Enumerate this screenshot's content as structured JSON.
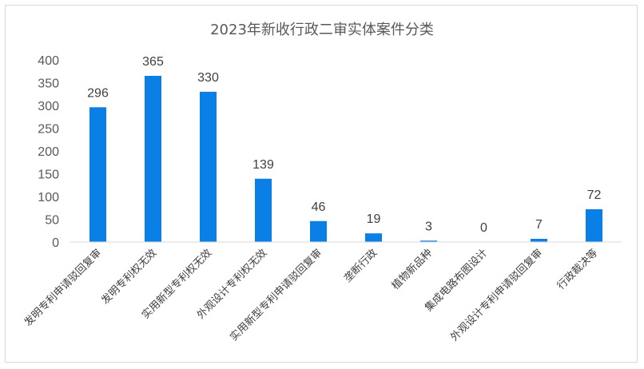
{
  "chart_data": {
    "type": "bar",
    "title": "2023年新收行政二审实体案件分类",
    "categories": [
      "发明专利申请驳回复审",
      "发明专利权无效",
      "实用新型专利权无效",
      "外观设计专利权无效",
      "实用新型专利申请驳回复审",
      "垄断行政",
      "植物新品种",
      "集成电路布图设计",
      "外观设计专利申请驳回复审",
      "行政裁决等"
    ],
    "values": [
      296,
      365,
      330,
      139,
      46,
      19,
      3,
      0,
      7,
      72
    ],
    "ylim": [
      0,
      400
    ],
    "yticks": [
      0,
      50,
      100,
      150,
      200,
      250,
      300,
      350,
      400
    ],
    "grid": false,
    "legend": "none",
    "bar_color": "#0a7fe6"
  }
}
